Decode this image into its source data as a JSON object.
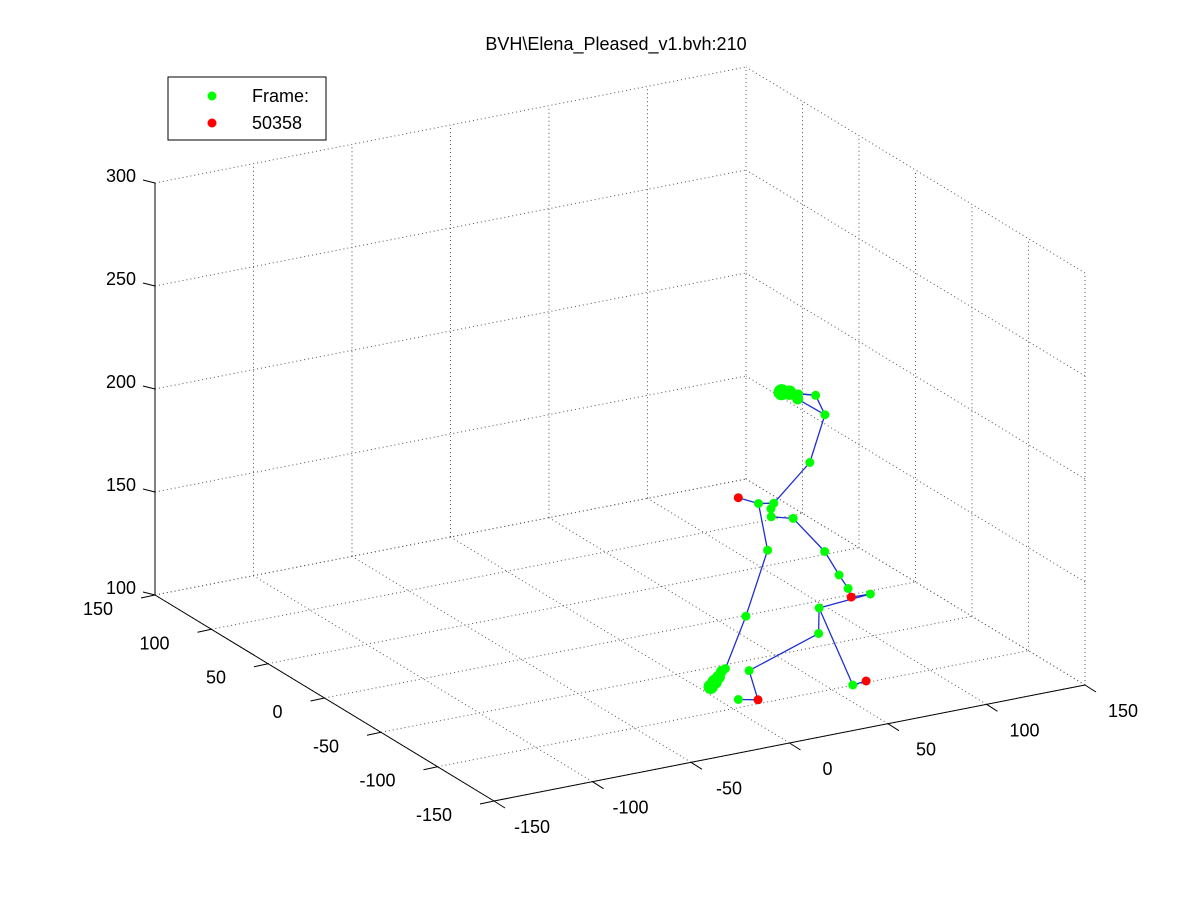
{
  "title": "BVH\\Elena_Pleased_v1.bvh:210",
  "legend": {
    "placement": "top-left",
    "entries": [
      {
        "label": "Frame:",
        "color": "#00ff00"
      },
      {
        "label": "50358",
        "color": "#ff0000"
      }
    ]
  },
  "chart_data": {
    "type": "scatter",
    "projection": "3d",
    "grid": true,
    "axes": {
      "x": {
        "range": [
          -150,
          150
        ],
        "ticks": [
          "-150",
          "-100",
          "-50",
          "0",
          "50",
          "100",
          "150"
        ]
      },
      "y": {
        "range": [
          -150,
          150
        ],
        "ticks": [
          "-150",
          "-100",
          "-50",
          "0",
          "50",
          "100",
          "150"
        ]
      },
      "z": {
        "range": [
          100,
          300
        ],
        "ticks": [
          "100",
          "150",
          "200",
          "250",
          "300"
        ]
      }
    },
    "bone_color": "#0000ff",
    "joints": [
      {
        "name": "head_1",
        "x": 78,
        "y": -7,
        "z": 208,
        "color": "#00ff00",
        "size": 9
      },
      {
        "name": "head_2",
        "x": 82,
        "y": -7,
        "z": 207,
        "color": "#00ff00",
        "size": 8
      },
      {
        "name": "head_3",
        "x": 85,
        "y": -9,
        "z": 204,
        "color": "#00ff00",
        "size": 6
      },
      {
        "name": "head_4",
        "x": 86,
        "y": -8,
        "z": 206,
        "color": "#00ff00",
        "size": 5
      },
      {
        "name": "head_end",
        "x": 93,
        "y": -11,
        "z": 205,
        "color": "#00ff00",
        "size": 5
      },
      {
        "name": "neck",
        "x": 96,
        "y": -14,
        "z": 196,
        "color": "#00ff00",
        "size": 5
      },
      {
        "name": "spine_4",
        "x": 86,
        "y": -18,
        "z": 176,
        "color": "#00ff00",
        "size": 5
      },
      {
        "name": "spine_3",
        "x": 66,
        "y": -21,
        "z": 161,
        "color": "#00ff00",
        "size": 5
      },
      {
        "name": "chest",
        "x": 60,
        "y": -18,
        "z": 161,
        "color": "#00ff00",
        "size": 5
      },
      {
        "name": "l_clavicle",
        "x": 52,
        "y": -14,
        "z": 164,
        "color": "#ff0000",
        "size": 5
      },
      {
        "name": "spine_2",
        "x": 64,
        "y": -22,
        "z": 159,
        "color": "#00ff00",
        "size": 5
      },
      {
        "name": "spine_1",
        "x": 63,
        "y": -24,
        "z": 156,
        "color": "#00ff00",
        "size": 5
      },
      {
        "name": "r_shoulder",
        "x": 73,
        "y": -26,
        "z": 154,
        "color": "#00ff00",
        "size": 5
      },
      {
        "name": "l_upperarm",
        "x": 60,
        "y": -26,
        "z": 141,
        "color": "#00ff00",
        "size": 5
      },
      {
        "name": "l_forearm",
        "x": 49,
        "y": -26,
        "z": 111,
        "color": "#00ff00",
        "size": 5
      },
      {
        "name": "l_hand_1",
        "x": 38,
        "y": -27,
        "z": 88,
        "color": "#00ff00",
        "size": 5
      },
      {
        "name": "l_hand_2",
        "x": 36,
        "y": -27,
        "z": 87,
        "color": "#00ff00",
        "size": 6
      },
      {
        "name": "l_hand_3",
        "x": 34,
        "y": -28,
        "z": 85,
        "color": "#00ff00",
        "size": 7
      },
      {
        "name": "l_hand_4",
        "x": 32,
        "y": -28,
        "z": 83,
        "color": "#00ff00",
        "size": 8
      },
      {
        "name": "l_hand_5",
        "x": 30,
        "y": -28,
        "z": 81,
        "color": "#00ff00",
        "size": 8
      },
      {
        "name": "r_elbow",
        "x": 85,
        "y": -33,
        "z": 138,
        "color": "#00ff00",
        "size": 5
      },
      {
        "name": "r_forearm",
        "x": 90,
        "y": -37,
        "z": 127,
        "color": "#00ff00",
        "size": 5
      },
      {
        "name": "r_wrist",
        "x": 94,
        "y": -38,
        "z": 120,
        "color": "#00ff00",
        "size": 5
      },
      {
        "name": "r_hand_joint",
        "x": 95,
        "y": -39,
        "z": 116,
        "color": "#ff0000",
        "size": 5
      },
      {
        "name": "r_hand_end",
        "x": 103,
        "y": -42,
        "z": 117,
        "color": "#00ff00",
        "size": 5
      },
      {
        "name": "pelvis",
        "x": 81,
        "y": -35,
        "z": 112,
        "color": "#00ff00",
        "size": 5
      },
      {
        "name": "r_knee",
        "x": 79,
        "y": -38,
        "z": 101,
        "color": "#00ff00",
        "size": 5
      },
      {
        "name": "l_knee",
        "x": 38,
        "y": -48,
        "z": 94,
        "color": "#00ff00",
        "size": 5
      },
      {
        "name": "r_ankle",
        "x": 70,
        "y": -84,
        "z": 93,
        "color": "#00ff00",
        "size": 5
      },
      {
        "name": "r_toe",
        "x": 75,
        "y": -87,
        "z": 95,
        "color": "#ff0000",
        "size": 5
      },
      {
        "name": "l_ankle",
        "x": 23,
        "y": -82,
        "z": 94,
        "color": "#ff0000",
        "size": 5
      },
      {
        "name": "l_toe",
        "x": 13,
        "y": -82,
        "z": 96,
        "color": "#00ff00",
        "size": 5
      }
    ],
    "bones": [
      [
        "head_1",
        "head_2"
      ],
      [
        "head_2",
        "head_3"
      ],
      [
        "head_1",
        "head_4"
      ],
      [
        "head_4",
        "head_end"
      ],
      [
        "head_3",
        "neck"
      ],
      [
        "head_end",
        "neck"
      ],
      [
        "head_2",
        "head_end"
      ],
      [
        "neck",
        "spine_4"
      ],
      [
        "spine_4",
        "spine_3"
      ],
      [
        "spine_3",
        "chest"
      ],
      [
        "chest",
        "l_clavicle"
      ],
      [
        "spine_3",
        "spine_2"
      ],
      [
        "spine_2",
        "spine_1"
      ],
      [
        "spine_1",
        "r_shoulder"
      ],
      [
        "chest",
        "l_upperarm"
      ],
      [
        "l_upperarm",
        "l_forearm"
      ],
      [
        "l_forearm",
        "l_hand_1"
      ],
      [
        "l_hand_1",
        "l_hand_2"
      ],
      [
        "l_hand_2",
        "l_hand_3"
      ],
      [
        "l_hand_3",
        "l_hand_4"
      ],
      [
        "l_hand_4",
        "l_hand_5"
      ],
      [
        "r_shoulder",
        "r_elbow"
      ],
      [
        "r_elbow",
        "r_forearm"
      ],
      [
        "r_forearm",
        "r_wrist"
      ],
      [
        "r_wrist",
        "r_hand_joint"
      ],
      [
        "r_hand_joint",
        "r_hand_end"
      ],
      [
        "r_hand_end",
        "pelvis"
      ],
      [
        "pelvis",
        "r_knee"
      ],
      [
        "r_knee",
        "l_knee"
      ],
      [
        "pelvis",
        "r_ankle"
      ],
      [
        "r_ankle",
        "r_toe"
      ],
      [
        "l_knee",
        "l_ankle"
      ],
      [
        "l_ankle",
        "l_toe"
      ]
    ]
  }
}
